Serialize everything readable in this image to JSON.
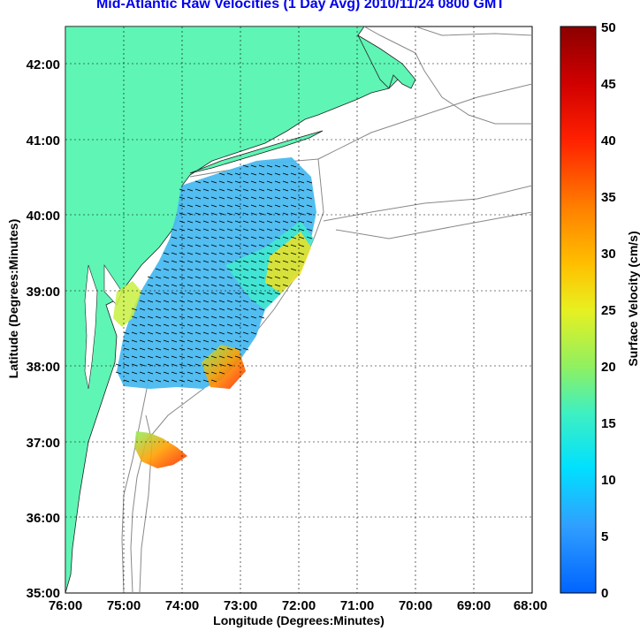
{
  "title": "Mid-Atlantic Raw Velocities (1 Day Avg) 2010/11/24 0800 GMT",
  "xlabel": "Longitude (Degrees:Minutes)",
  "ylabel": "Latitude (Degrees:Minutes)",
  "colorbar_label": "Surface Velocity (cm/s)",
  "x_ticks": [
    "76:00",
    "75:00",
    "74:00",
    "73:00",
    "72:00",
    "71:00",
    "70:00",
    "69:00",
    "68:00"
  ],
  "y_ticks": [
    "42:00",
    "41:00",
    "40:00",
    "39:00",
    "38:00",
    "37:00",
    "36:00",
    "35:00"
  ],
  "colorbar_ticks": [
    "50",
    "45",
    "40",
    "35",
    "30",
    "25",
    "20",
    "15",
    "10",
    "5",
    "0"
  ],
  "colors": {
    "title": "#0000ee",
    "land": "#5ff5b5",
    "coastline": "#888888",
    "arrows": "#000000",
    "colormap_low": "#0066ff",
    "colormap_high": "#8b0000"
  },
  "map": {
    "lon_range": [
      -76,
      -68
    ],
    "lat_range": [
      35,
      42.5
    ],
    "colorbar_range": [
      0,
      50
    ],
    "grid": true
  }
}
